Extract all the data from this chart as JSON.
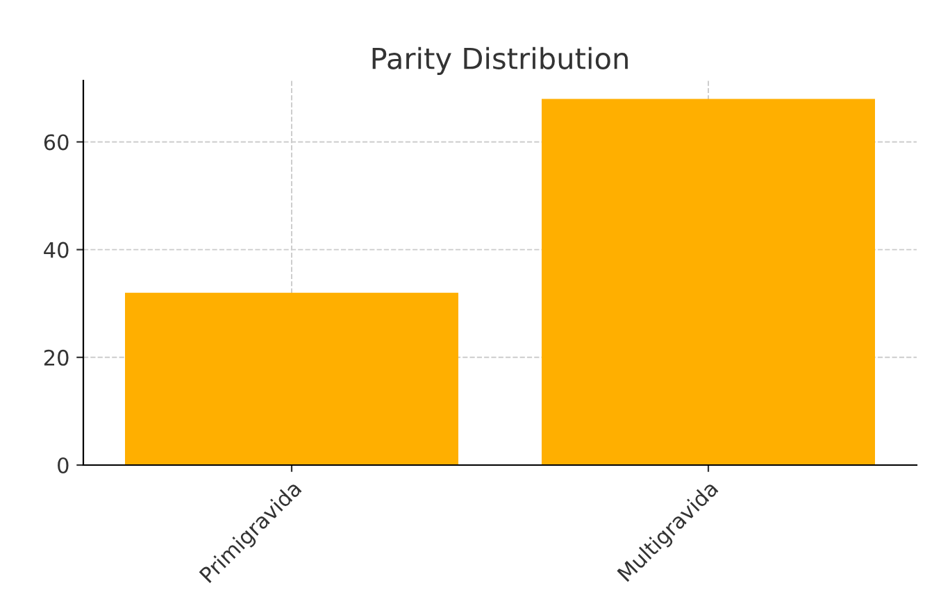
{
  "chart_data": {
    "type": "bar",
    "title": "Parity Distribution",
    "categories": [
      "Primigravida",
      "Multigravida"
    ],
    "values": [
      32,
      68
    ],
    "color": "#ffaf00",
    "ylim": [
      0,
      71.4
    ],
    "yticks": [
      0,
      20,
      40,
      60
    ],
    "grid": true
  }
}
